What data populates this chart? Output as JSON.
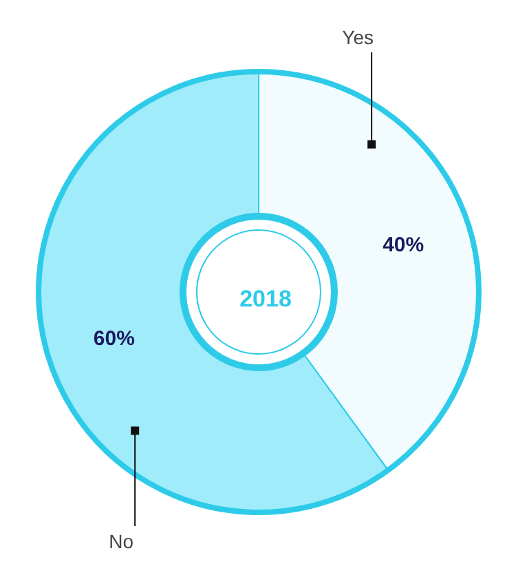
{
  "chart_data": {
    "type": "donut",
    "title": "2018",
    "categories": [
      "Yes",
      "No"
    ],
    "values": [
      40,
      60
    ],
    "colors": [
      "#f2fcff",
      "#a0ecfb"
    ],
    "value_labels": [
      "40%",
      "60%"
    ],
    "legend": false
  }
}
